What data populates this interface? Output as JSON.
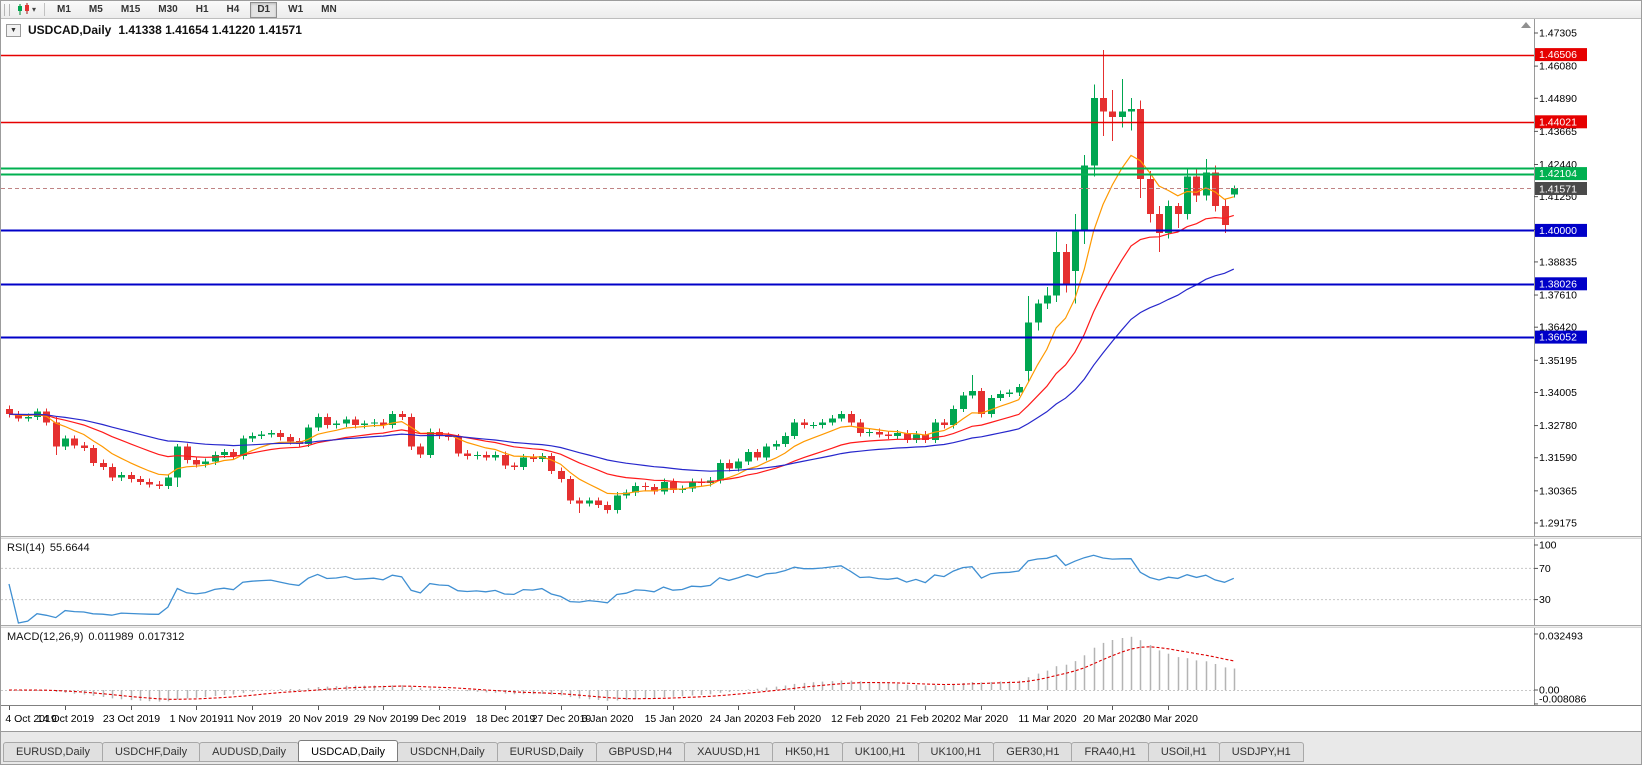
{
  "toolbar": {
    "timeframes": [
      "M1",
      "M5",
      "M15",
      "M30",
      "H1",
      "H4",
      "D1",
      "W1",
      "MN"
    ],
    "active_timeframe": "D1"
  },
  "icons": {
    "collapse": "▼",
    "dropdown_caret": "▾"
  },
  "chart": {
    "title": "USDCAD,Daily",
    "ohlc_text": "1.41338 1.41654 1.41220 1.41571"
  },
  "indicators": {
    "rsi": {
      "label": "RSI(14)",
      "value": "55.6644"
    },
    "macd": {
      "label": "MACD(12,26,9)",
      "value_main": "0.011989",
      "value_signal": "0.017312"
    }
  },
  "tabs": {
    "active_index": 3,
    "items": [
      "EURUSD,Daily",
      "USDCHF,Daily",
      "AUDUSD,Daily",
      "USDCAD,Daily",
      "USDCNH,Daily",
      "EURUSD,Daily",
      "GBPUSD,H4",
      "XAUUSD,H1",
      "HK50,H1",
      "UK100,H1",
      "UK100,H1",
      "GER30,H1",
      "FRA40,H1",
      "USOil,H1",
      "USDJPY,H1"
    ]
  },
  "chart_data": {
    "type": "candlestick",
    "symbol": "USDCAD",
    "period": "Daily",
    "colors": {
      "up": "#00a651",
      "down": "#e53030",
      "background": "#ffffff",
      "axis_text": "#000000"
    },
    "price_axis": {
      "top": 1.47305,
      "bottom": 1.29175,
      "ticks": [
        "1.47305",
        "1.46080",
        "1.44890",
        "1.43665",
        "1.42440",
        "1.41250",
        "1.40030",
        "1.38835",
        "1.37610",
        "1.36420",
        "1.35195",
        "1.34005",
        "1.32780",
        "1.31590",
        "1.30365",
        "1.29175"
      ]
    },
    "x_axis": {
      "labels": [
        "4 Oct 2019",
        "14 Oct 2019",
        "23 Oct 2019",
        "1 Nov 2019",
        "11 Nov 2019",
        "20 Nov 2019",
        "29 Nov 2019",
        "9 Dec 2019",
        "18 Dec 2019",
        "27 Dec 2019",
        "6 Jan 2020",
        "15 Jan 2020",
        "24 Jan 2020",
        "3 Feb 2020",
        "12 Feb 2020",
        "21 Feb 2020",
        "2 Mar 2020",
        "11 Mar 2020",
        "20 Mar 2020",
        "30 Mar 2020"
      ],
      "indices": [
        0,
        6,
        13,
        20,
        26,
        33,
        40,
        46,
        53,
        59,
        64,
        71,
        78,
        84,
        91,
        98,
        104,
        111,
        118,
        124
      ]
    },
    "horizontal_lines": [
      {
        "price": 1.46506,
        "label": "1.46506",
        "color": "#e60000",
        "width": 1.5
      },
      {
        "price": 1.44021,
        "label": "1.44021",
        "color": "#e60000",
        "width": 1.5
      },
      {
        "price": 1.4231,
        "label": "",
        "color": "#00b050",
        "width": 2
      },
      {
        "price": 1.42104,
        "label": "1.42104",
        "color": "#00b050",
        "width": 2
      },
      {
        "price": 1.4,
        "label": "1.40000",
        "color": "#0000c8",
        "width": 2
      },
      {
        "price": 1.38026,
        "label": "1.38026",
        "color": "#0000c8",
        "width": 2
      },
      {
        "price": 1.36052,
        "label": "1.36052",
        "color": "#0000c8",
        "width": 2
      }
    ],
    "current_price": {
      "value": 1.41571,
      "label": "1.41571"
    },
    "moving_averages": [
      {
        "type": "EMA",
        "period": 8,
        "color": "#ff9900"
      },
      {
        "type": "EMA",
        "period": 20,
        "color": "#ff1a1a"
      },
      {
        "type": "EMA",
        "period": 40,
        "color": "#2727cc"
      }
    ],
    "rsi": {
      "period": 14,
      "levels": [
        70,
        30
      ],
      "axis_labels": [
        "100",
        "70",
        "30"
      ],
      "color": "#3f8fd2",
      "last_value": 55.6644
    },
    "macd": {
      "fast": 12,
      "slow": 26,
      "signal": 9,
      "axis_max": 0.032493,
      "axis_min": -0.008086,
      "axis_labels": [
        "0.032493",
        "0.00",
        "-0.008086"
      ],
      "hist_color": "#b4b4b4",
      "signal_color": "#dd0000"
    },
    "ohlc": [
      [
        1.334,
        1.3352,
        1.3308,
        1.332
      ],
      [
        1.332,
        1.3332,
        1.3293,
        1.3305
      ],
      [
        1.3305,
        1.3322,
        1.3293,
        1.331
      ],
      [
        1.331,
        1.3342,
        1.3298,
        1.333
      ],
      [
        1.333,
        1.3342,
        1.3278,
        1.329
      ],
      [
        1.329,
        1.331,
        1.317,
        1.32
      ],
      [
        1.32,
        1.3242,
        1.3188,
        1.323
      ],
      [
        1.323,
        1.3242,
        1.3193,
        1.3205
      ],
      [
        1.3205,
        1.3217,
        1.3183,
        1.3195
      ],
      [
        1.3195,
        1.3207,
        1.3128,
        1.314
      ],
      [
        1.314,
        1.3152,
        1.3113,
        1.3125
      ],
      [
        1.3125,
        1.3137,
        1.3073,
        1.3085
      ],
      [
        1.3085,
        1.3107,
        1.3073,
        1.3095
      ],
      [
        1.3095,
        1.3107,
        1.3068,
        1.308
      ],
      [
        1.308,
        1.3092,
        1.3058,
        1.307
      ],
      [
        1.307,
        1.3082,
        1.3048,
        1.306
      ],
      [
        1.306,
        1.3072,
        1.3043,
        1.3055
      ],
      [
        1.3055,
        1.3097,
        1.3043,
        1.3085
      ],
      [
        1.3085,
        1.321,
        1.305,
        1.32
      ],
      [
        1.32,
        1.3212,
        1.3138,
        1.315
      ],
      [
        1.315,
        1.3162,
        1.3123,
        1.3135
      ],
      [
        1.3135,
        1.3157,
        1.3123,
        1.3145
      ],
      [
        1.3145,
        1.3182,
        1.3133,
        1.317
      ],
      [
        1.317,
        1.3192,
        1.3158,
        1.318
      ],
      [
        1.318,
        1.3192,
        1.3153,
        1.3165
      ],
      [
        1.3165,
        1.3242,
        1.3153,
        1.323
      ],
      [
        1.323,
        1.3252,
        1.3218,
        1.324
      ],
      [
        1.324,
        1.3257,
        1.3228,
        1.3245
      ],
      [
        1.3245,
        1.3262,
        1.3233,
        1.325
      ],
      [
        1.325,
        1.3262,
        1.3223,
        1.3235
      ],
      [
        1.3235,
        1.3247,
        1.3208,
        1.322
      ],
      [
        1.322,
        1.3232,
        1.3198,
        1.321
      ],
      [
        1.321,
        1.3282,
        1.3198,
        1.327
      ],
      [
        1.327,
        1.3322,
        1.3258,
        1.331
      ],
      [
        1.331,
        1.3322,
        1.3268,
        1.328
      ],
      [
        1.328,
        1.3297,
        1.3268,
        1.3285
      ],
      [
        1.3285,
        1.3312,
        1.3273,
        1.33
      ],
      [
        1.33,
        1.3312,
        1.3268,
        1.328
      ],
      [
        1.328,
        1.3297,
        1.3268,
        1.3285
      ],
      [
        1.3285,
        1.3302,
        1.3273,
        1.329
      ],
      [
        1.329,
        1.3302,
        1.3268,
        1.328
      ],
      [
        1.328,
        1.3332,
        1.3268,
        1.332
      ],
      [
        1.332,
        1.3332,
        1.3298,
        1.331
      ],
      [
        1.331,
        1.3322,
        1.3188,
        1.32
      ],
      [
        1.32,
        1.3212,
        1.3158,
        1.317
      ],
      [
        1.317,
        1.3267,
        1.3158,
        1.3255
      ],
      [
        1.3255,
        1.3267,
        1.3228,
        1.324
      ],
      [
        1.324,
        1.3252,
        1.3223,
        1.3235
      ],
      [
        1.3235,
        1.3247,
        1.3163,
        1.3175
      ],
      [
        1.3175,
        1.3187,
        1.3153,
        1.3165
      ],
      [
        1.3165,
        1.3182,
        1.3153,
        1.317
      ],
      [
        1.317,
        1.3182,
        1.3148,
        1.316
      ],
      [
        1.316,
        1.3182,
        1.3148,
        1.317
      ],
      [
        1.317,
        1.3182,
        1.3118,
        1.313
      ],
      [
        1.313,
        1.3142,
        1.3113,
        1.3125
      ],
      [
        1.3125,
        1.3172,
        1.3113,
        1.316
      ],
      [
        1.316,
        1.3172,
        1.3143,
        1.3155
      ],
      [
        1.3155,
        1.3177,
        1.3143,
        1.3165
      ],
      [
        1.3165,
        1.3177,
        1.3098,
        1.311
      ],
      [
        1.311,
        1.3122,
        1.3068,
        1.308
      ],
      [
        1.308,
        1.3092,
        1.2988,
        1.3
      ],
      [
        1.3,
        1.3012,
        1.2955,
        1.299
      ],
      [
        1.299,
        1.3012,
        1.2978,
        1.3
      ],
      [
        1.3,
        1.3012,
        1.2973,
        1.2985
      ],
      [
        1.2985,
        1.2997,
        1.2952,
        1.2965
      ],
      [
        1.2965,
        1.3032,
        1.2953,
        1.302
      ],
      [
        1.302,
        1.3042,
        1.3008,
        1.303
      ],
      [
        1.303,
        1.3067,
        1.3018,
        1.3055
      ],
      [
        1.3055,
        1.3067,
        1.3038,
        1.305
      ],
      [
        1.305,
        1.3062,
        1.3023,
        1.3035
      ],
      [
        1.3035,
        1.3082,
        1.3023,
        1.307
      ],
      [
        1.307,
        1.3082,
        1.3028,
        1.304
      ],
      [
        1.304,
        1.3057,
        1.3028,
        1.3045
      ],
      [
        1.3045,
        1.3082,
        1.3033,
        1.307
      ],
      [
        1.307,
        1.3082,
        1.3053,
        1.3065
      ],
      [
        1.3065,
        1.3087,
        1.3053,
        1.3075
      ],
      [
        1.3075,
        1.3152,
        1.3063,
        1.314
      ],
      [
        1.314,
        1.3152,
        1.3108,
        1.312
      ],
      [
        1.312,
        1.3157,
        1.3108,
        1.3145
      ],
      [
        1.3145,
        1.3192,
        1.3133,
        1.318
      ],
      [
        1.318,
        1.3192,
        1.3148,
        1.316
      ],
      [
        1.316,
        1.3212,
        1.3148,
        1.32
      ],
      [
        1.32,
        1.3222,
        1.3188,
        1.321
      ],
      [
        1.321,
        1.3252,
        1.3198,
        1.324
      ],
      [
        1.324,
        1.3302,
        1.3228,
        1.329
      ],
      [
        1.329,
        1.3302,
        1.3268,
        1.328
      ],
      [
        1.328,
        1.3292,
        1.3268,
        1.328
      ],
      [
        1.328,
        1.3302,
        1.3268,
        1.329
      ],
      [
        1.329,
        1.3317,
        1.3278,
        1.3305
      ],
      [
        1.3305,
        1.3332,
        1.3293,
        1.332
      ],
      [
        1.332,
        1.3332,
        1.3278,
        1.329
      ],
      [
        1.329,
        1.3302,
        1.3238,
        1.325
      ],
      [
        1.325,
        1.3267,
        1.3238,
        1.3255
      ],
      [
        1.3255,
        1.3267,
        1.3233,
        1.3245
      ],
      [
        1.3245,
        1.3257,
        1.3228,
        1.324
      ],
      [
        1.324,
        1.3262,
        1.3228,
        1.325
      ],
      [
        1.325,
        1.3262,
        1.3213,
        1.3225
      ],
      [
        1.3225,
        1.3257,
        1.3213,
        1.3245
      ],
      [
        1.3245,
        1.3257,
        1.3213,
        1.3225
      ],
      [
        1.3225,
        1.3302,
        1.3213,
        1.329
      ],
      [
        1.329,
        1.3302,
        1.3268,
        1.328
      ],
      [
        1.328,
        1.3352,
        1.3268,
        1.334
      ],
      [
        1.334,
        1.3402,
        1.3328,
        1.339
      ],
      [
        1.339,
        1.3465,
        1.3378,
        1.3405
      ],
      [
        1.3405,
        1.3417,
        1.3308,
        1.332
      ],
      [
        1.332,
        1.3392,
        1.3308,
        1.338
      ],
      [
        1.338,
        1.3407,
        1.3368,
        1.3395
      ],
      [
        1.3395,
        1.3412,
        1.3383,
        1.34
      ],
      [
        1.34,
        1.3432,
        1.3388,
        1.342
      ],
      [
        1.348,
        1.3758,
        1.344,
        1.366
      ],
      [
        1.366,
        1.3745,
        1.363,
        1.373
      ],
      [
        1.373,
        1.379,
        1.371,
        1.376
      ],
      [
        1.376,
        1.3995,
        1.3735,
        1.392
      ],
      [
        1.392,
        1.395,
        1.377,
        1.38
      ],
      [
        1.385,
        1.406,
        1.373,
        1.4
      ],
      [
        1.4,
        1.428,
        1.395,
        1.424
      ],
      [
        1.424,
        1.454,
        1.42,
        1.449
      ],
      [
        1.449,
        1.4668,
        1.435,
        1.444
      ],
      [
        1.444,
        1.452,
        1.433,
        1.442
      ],
      [
        1.442,
        1.456,
        1.438,
        1.444
      ],
      [
        1.444,
        1.449,
        1.437,
        1.445
      ],
      [
        1.445,
        1.448,
        1.412,
        1.419
      ],
      [
        1.419,
        1.422,
        1.403,
        1.406
      ],
      [
        1.406,
        1.409,
        1.392,
        1.399
      ],
      [
        1.399,
        1.411,
        1.397,
        1.409
      ],
      [
        1.409,
        1.4102,
        1.4009,
        1.406
      ],
      [
        1.406,
        1.423,
        1.404,
        1.42
      ],
      [
        1.42,
        1.4225,
        1.4105,
        1.413
      ],
      [
        1.413,
        1.4265,
        1.411,
        1.4215
      ],
      [
        1.4215,
        1.424,
        1.407,
        1.409
      ],
      [
        1.409,
        1.4115,
        1.399,
        1.402
      ],
      [
        1.41338,
        1.41654,
        1.4122,
        1.41571
      ]
    ]
  }
}
